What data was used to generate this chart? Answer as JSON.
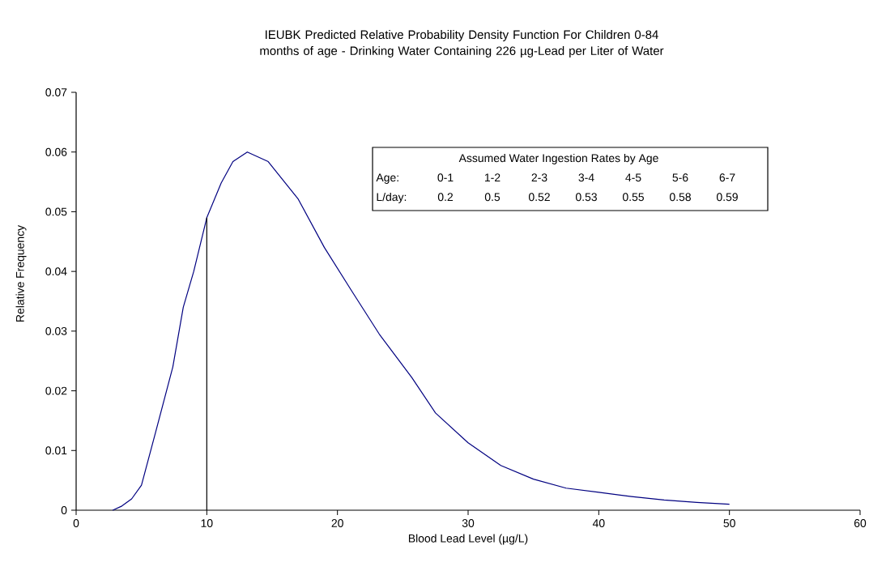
{
  "chart_data": {
    "type": "line",
    "title": "IEUBK Predicted Relative Probability Density Function For Children 0-84 months of age - Drinking Water Containing 226 µg-Lead per Liter of Water",
    "xlabel": "Blood Lead Level (µg/L)",
    "ylabel": "Relative Frequency",
    "series": [
      {
        "color": "#000080",
        "x": [
          2.8,
          3.5,
          4.25,
          5,
          6.1,
          7.4,
          8.2,
          9,
          10,
          11.1,
          12,
          13.1,
          14.7,
          17,
          19,
          21.1,
          23.2,
          25.7,
          27.5,
          30,
          32.5,
          35,
          37.5,
          40,
          42.5,
          45,
          47.5,
          50
        ],
        "values": [
          0,
          0.0007,
          0.0019,
          0.0042,
          0.0132,
          0.024,
          0.034,
          0.04,
          0.049,
          0.0548,
          0.0584,
          0.06,
          0.0584,
          0.0521,
          0.044,
          0.0367,
          0.0295,
          0.0222,
          0.0163,
          0.0113,
          0.0075,
          0.0052,
          0.0037,
          0.003,
          0.0023,
          0.0017,
          0.0013,
          0.001
        ]
      }
    ],
    "xlim": [
      0,
      60
    ],
    "xticks": [
      0,
      10,
      20,
      30,
      40,
      50,
      60
    ],
    "ylim": [
      0,
      0.07
    ],
    "yticks": [
      0,
      0.01,
      0.02,
      0.03,
      0.04,
      0.05,
      0.06,
      0.07
    ],
    "grid": false,
    "marker": "none",
    "line_style": "solid",
    "ref_lines": [
      {
        "axis": "x",
        "value": 10,
        "color": "#000000"
      }
    ],
    "annotations": [
      "Assumed Water Ingestion Rates by Age",
      "Age:",
      "0-1",
      "1-2",
      "2-3",
      "3-4",
      "4-5",
      "5-6",
      "6-7",
      "L/day:",
      "0.2",
      "0.5",
      "0.52",
      "0.53",
      "0.55",
      "0.58",
      "0.59"
    ]
  }
}
